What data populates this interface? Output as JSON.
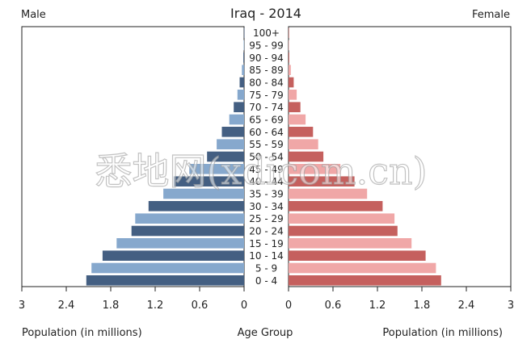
{
  "chart_data": {
    "type": "bar",
    "title": "Iraq - 2014",
    "left_label": "Male",
    "right_label": "Female",
    "xlabel_left": "Population (in millions)",
    "xlabel_center": "Age Group",
    "xlabel_right": "Population (in millions)",
    "xlim": [
      0,
      3
    ],
    "x_ticks_left": [
      "3",
      "2.4",
      "1.8",
      "1.2",
      "0.6",
      "0"
    ],
    "x_ticks_right": [
      "0",
      "0.6",
      "1.2",
      "1.8",
      "2.4",
      "3"
    ],
    "categories": [
      "0 - 4",
      "5 - 9",
      "10 - 14",
      "15 - 19",
      "20 - 24",
      "25 - 29",
      "30 - 34",
      "35 - 39",
      "40 - 44",
      "45 - 49",
      "50 - 54",
      "55 - 59",
      "60 - 64",
      "65 - 69",
      "70 - 74",
      "75 - 79",
      "80 - 84",
      "85 - 89",
      "90 - 94",
      "95 - 99",
      "100+"
    ],
    "series": [
      {
        "name": "Male",
        "values": [
          2.13,
          2.06,
          1.91,
          1.72,
          1.52,
          1.47,
          1.29,
          1.09,
          0.95,
          0.74,
          0.5,
          0.37,
          0.3,
          0.2,
          0.14,
          0.09,
          0.06,
          0.03,
          0.01,
          0.005,
          0.002
        ]
      },
      {
        "name": "Female",
        "values": [
          2.06,
          1.99,
          1.85,
          1.66,
          1.47,
          1.43,
          1.27,
          1.06,
          0.89,
          0.7,
          0.47,
          0.4,
          0.33,
          0.23,
          0.16,
          0.11,
          0.07,
          0.03,
          0.01,
          0.005,
          0.002
        ]
      }
    ],
    "colors": {
      "male_dark": "#445f82",
      "male_light": "#86a8cd",
      "female_dark": "#c5605e",
      "female_light": "#f0a7a7",
      "axis": "#222222"
    },
    "grid": false
  },
  "watermark": "悉地网(xdicom.cn)"
}
